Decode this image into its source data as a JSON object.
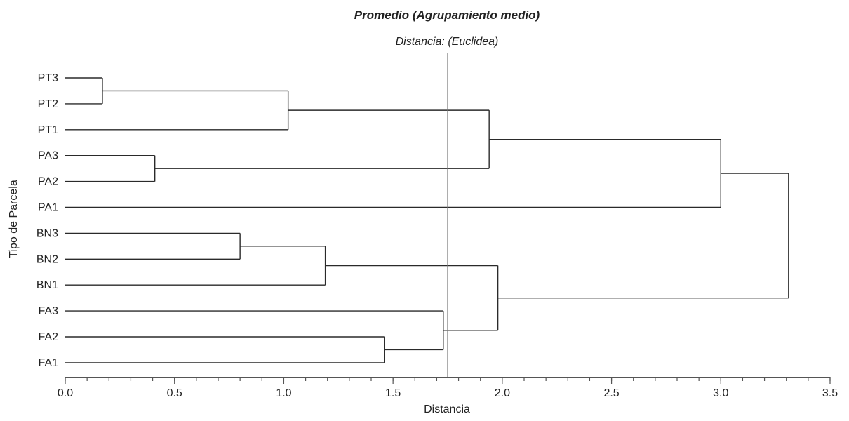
{
  "chart_data": {
    "type": "dendrogram",
    "title": "Promedio (Agrupamiento medio)",
    "subtitle": "Distancia: (Euclidea)",
    "xlabel": "Distancia",
    "ylabel": "Tipo de Parcela",
    "xlim": [
      0,
      3.5
    ],
    "xticks": [
      0.0,
      0.5,
      1.0,
      1.5,
      2.0,
      2.5,
      3.0,
      3.5
    ],
    "xtick_labels": [
      "0.0",
      "0.5",
      "1.0",
      "1.5",
      "2.0",
      "2.5",
      "3.0",
      "3.5"
    ],
    "cut_distance": 1.75,
    "leaves": [
      "PT3",
      "PT2",
      "PT1",
      "PA3",
      "PA2",
      "PA1",
      "BN3",
      "BN2",
      "BN1",
      "FA3",
      "FA2",
      "FA1"
    ],
    "merges": [
      {
        "id": "m1",
        "left": "PT3",
        "right": "PT2",
        "height": 0.17
      },
      {
        "id": "m2",
        "left": "m1",
        "right": "PT1",
        "height": 1.02
      },
      {
        "id": "m3",
        "left": "PA3",
        "right": "PA2",
        "height": 0.41
      },
      {
        "id": "m4",
        "left": "m2",
        "right": "m3",
        "height": 1.94
      },
      {
        "id": "m5",
        "left": "m4",
        "right": "PA1",
        "height": 3.0
      },
      {
        "id": "m6",
        "left": "BN3",
        "right": "BN2",
        "height": 0.8
      },
      {
        "id": "m7",
        "left": "m6",
        "right": "BN1",
        "height": 1.19
      },
      {
        "id": "m8",
        "left": "FA2",
        "right": "FA1",
        "height": 1.46
      },
      {
        "id": "m9",
        "left": "FA3",
        "right": "m8",
        "height": 1.73
      },
      {
        "id": "m10",
        "left": "m7",
        "right": "m9",
        "height": 1.98
      },
      {
        "id": "m11",
        "left": "m5",
        "right": "m10",
        "height": 3.31
      }
    ]
  }
}
